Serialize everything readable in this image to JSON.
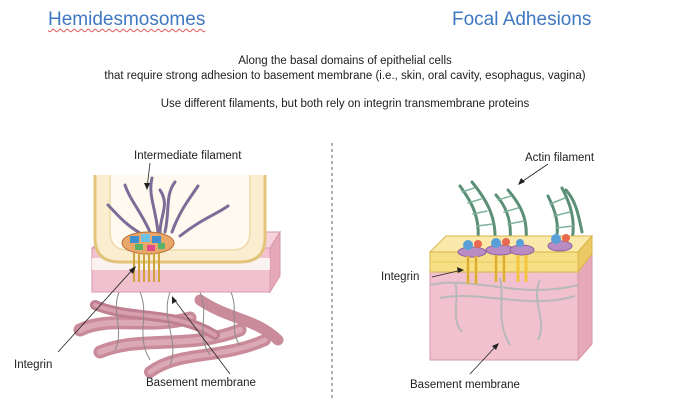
{
  "titles": {
    "left": "Hemidesmosomes",
    "right": "Focal Adhesions"
  },
  "subtitle": {
    "line1": "Along the basal domains of epithelial cells",
    "line2": "that require strong adhesion to basement membrane (i.e., skin, oral cavity, esophagus, vagina)",
    "line3": "Use different filaments, but both rely on integrin transmembrane proteins"
  },
  "left_labels": {
    "filament": "Intermediate filament",
    "integrin": "Integrin",
    "membrane": "Basement membrane"
  },
  "right_labels": {
    "filament": "Actin filament",
    "integrin": "Integrin",
    "membrane": "Basement membrane"
  },
  "colors": {
    "title": "#3f78c2",
    "cell": "#fbeed0",
    "cell_outline": "#e3c47a",
    "membrane_pink": "#f1c1cf",
    "collagen": "#c98a9a",
    "actin": "#5b8f77"
  }
}
